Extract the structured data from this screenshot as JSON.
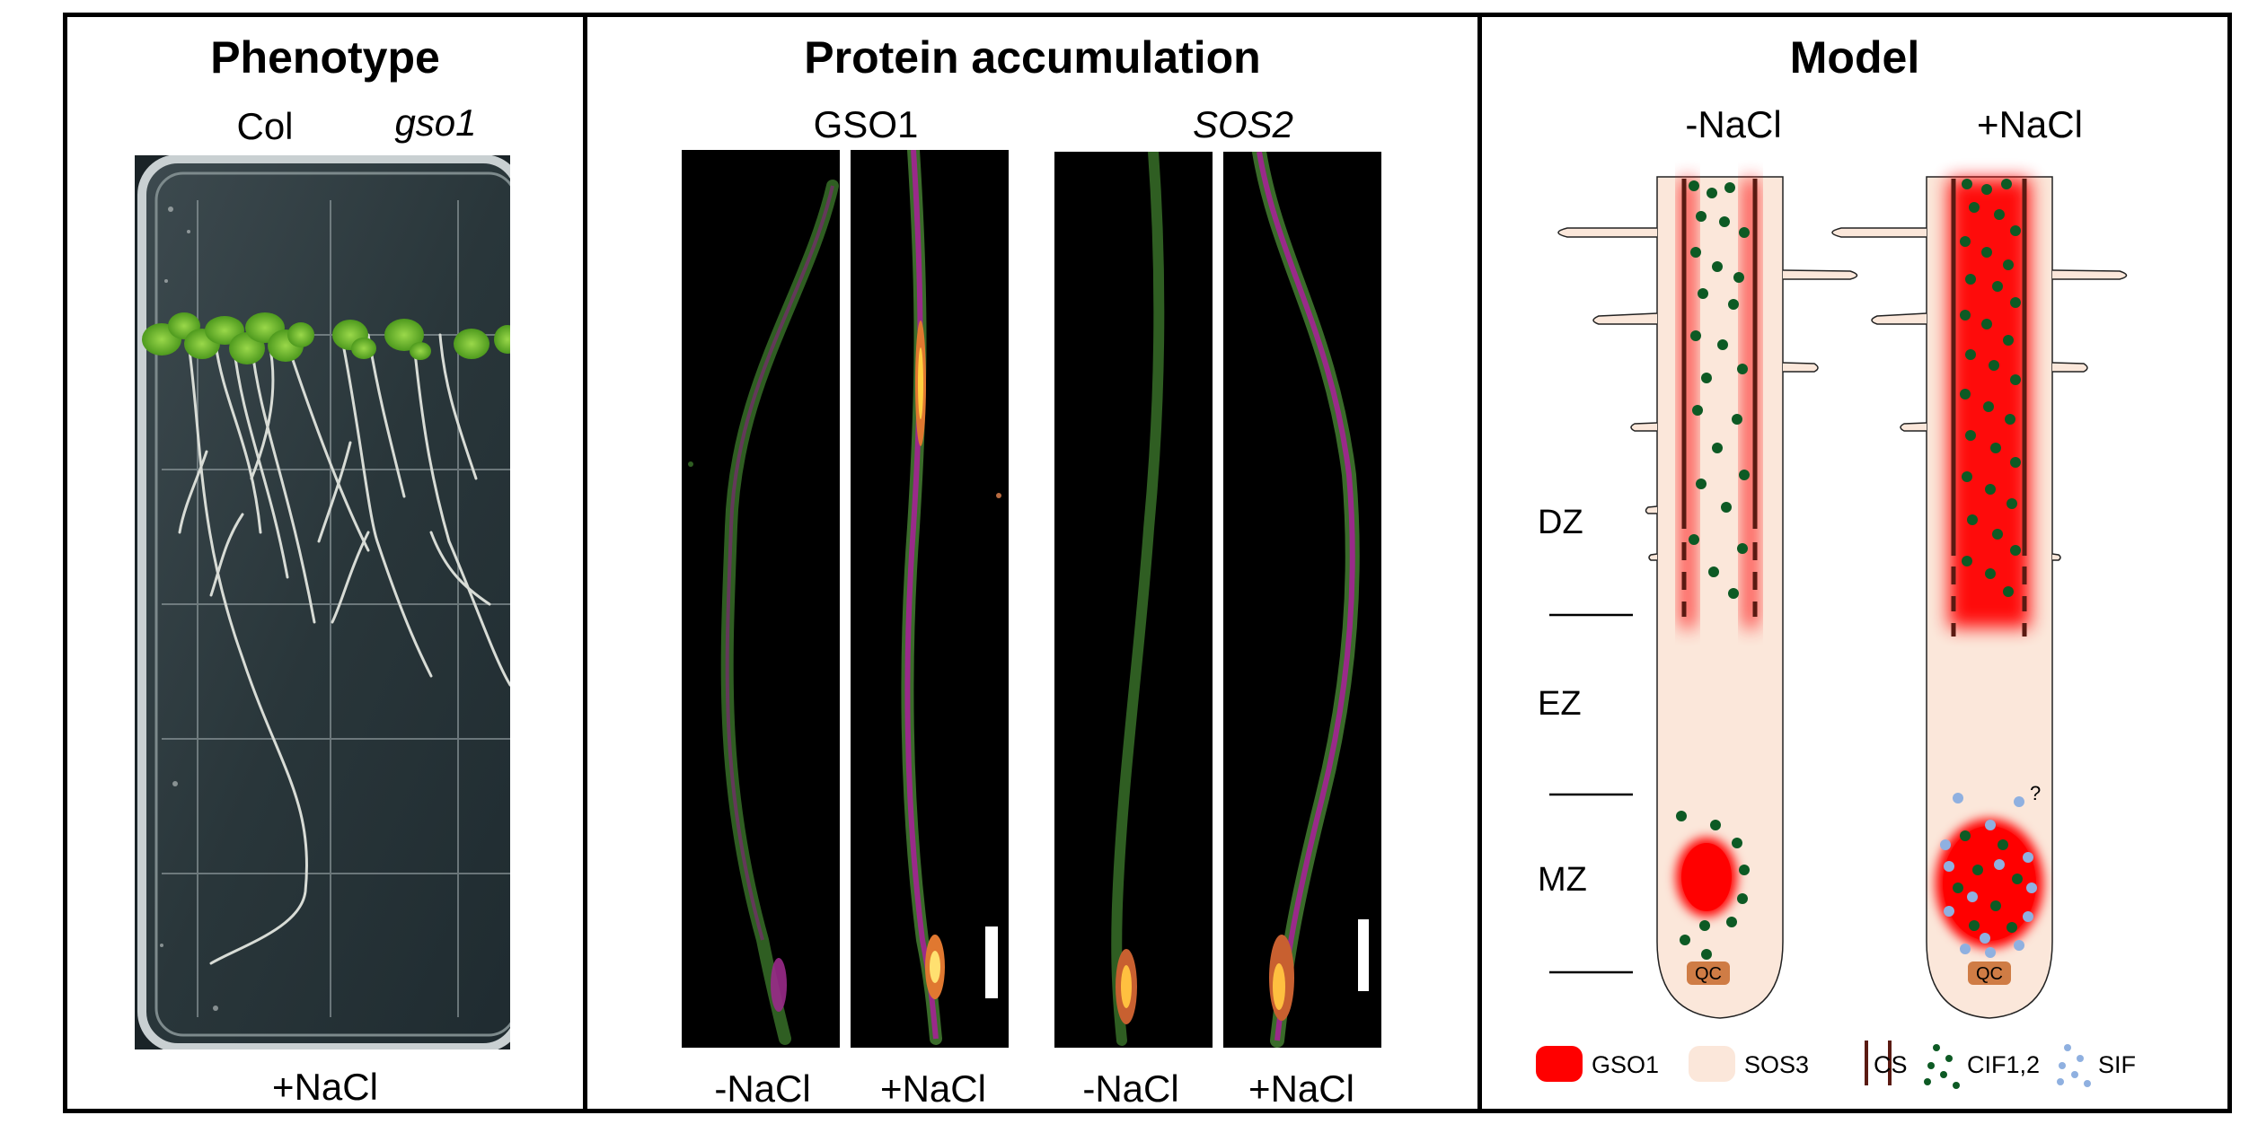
{
  "figure": {
    "panel_a": {
      "title": "Phenotype",
      "col_label": "Col",
      "mutant_label": "gso1",
      "condition": "+NaCl"
    },
    "panel_b": {
      "title": "Protein accumulation",
      "group1_label": "GSO1",
      "group2_label": "SOS2",
      "conditions": [
        "-NaCl",
        "+NaCl",
        "-NaCl",
        "+NaCl"
      ]
    },
    "panel_c": {
      "title": "Model",
      "col1_label": "-NaCl",
      "col2_label": "+NaCl",
      "zones": [
        "DZ",
        "EZ",
        "MZ"
      ],
      "qc_label": "QC",
      "question_mark": "?",
      "legend": {
        "gso1": "GSO1",
        "sos3": "SOS3",
        "cs": "CS",
        "cif": "CIF1,2",
        "sif": "SIF"
      }
    }
  },
  "colors": {
    "gso1_red": "#ff0000",
    "sos3_peach": "#fbe7da",
    "cs_brown": "#5a1a12",
    "cif_green": "#0d5a24",
    "sif_blue": "#8fb0e0",
    "qc_orange": "#cf7c45",
    "fluor_green": "#3a6b2a",
    "fluor_magenta": "#9a2a8a",
    "fluor_hot": "#ffb020"
  }
}
